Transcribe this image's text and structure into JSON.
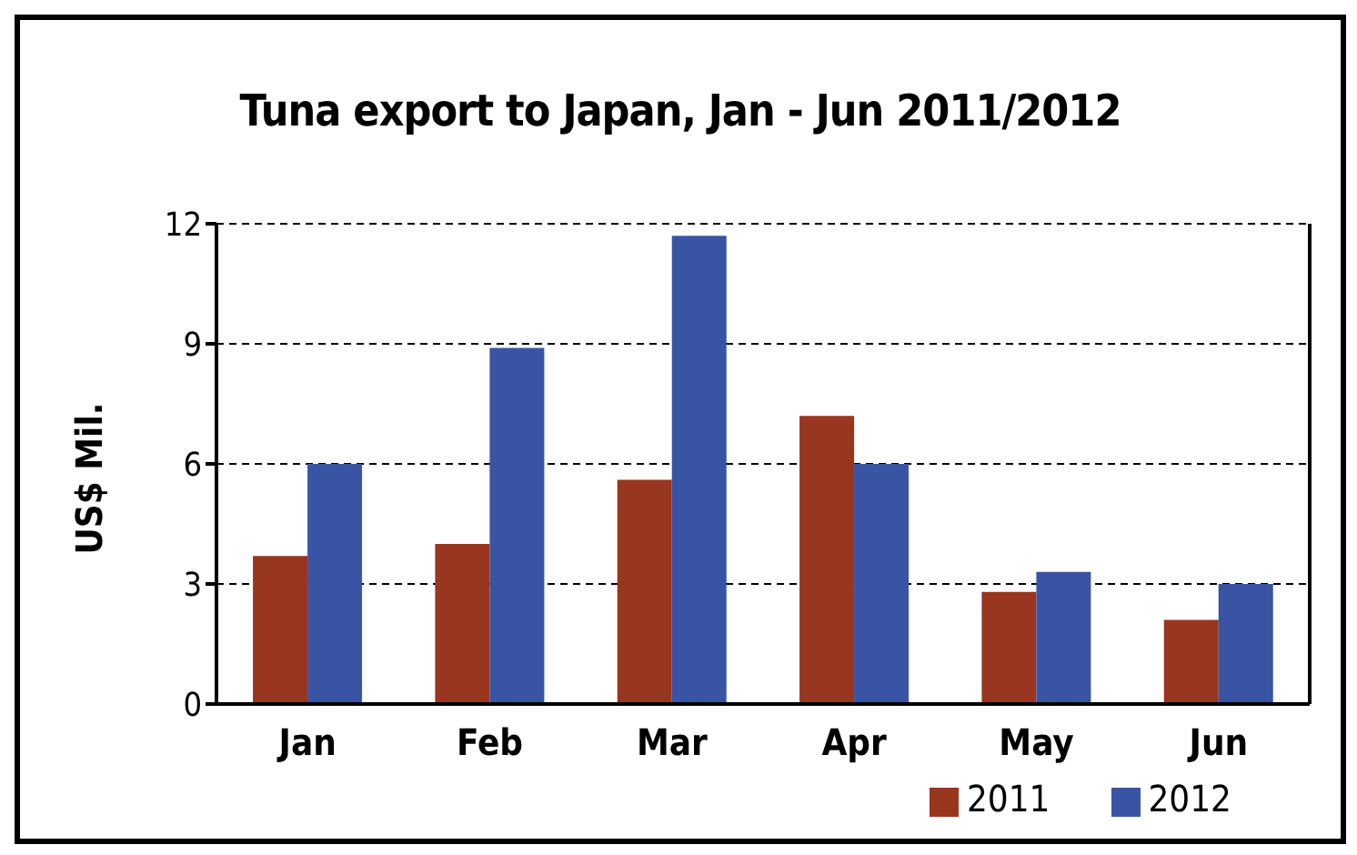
{
  "chart_data": {
    "type": "bar",
    "title": "Tuna export to Japan, Jan - Jun 2011/2012",
    "ylabel": "US$ Mil.",
    "categories": [
      "Jan",
      "Feb",
      "Mar",
      "Apr",
      "May",
      "Jun"
    ],
    "series": [
      {
        "name": "2011",
        "color": "#983620",
        "values": [
          3.7,
          4.0,
          5.6,
          7.2,
          2.8,
          2.1
        ]
      },
      {
        "name": "2012",
        "color": "#3a54a4",
        "values": [
          6.0,
          8.9,
          11.7,
          6.0,
          3.3,
          3.0
        ]
      }
    ],
    "ylim": [
      0,
      12
    ],
    "yticks": [
      0,
      3,
      6,
      9,
      12
    ],
    "grid": "y",
    "legend": "bottom right"
  }
}
